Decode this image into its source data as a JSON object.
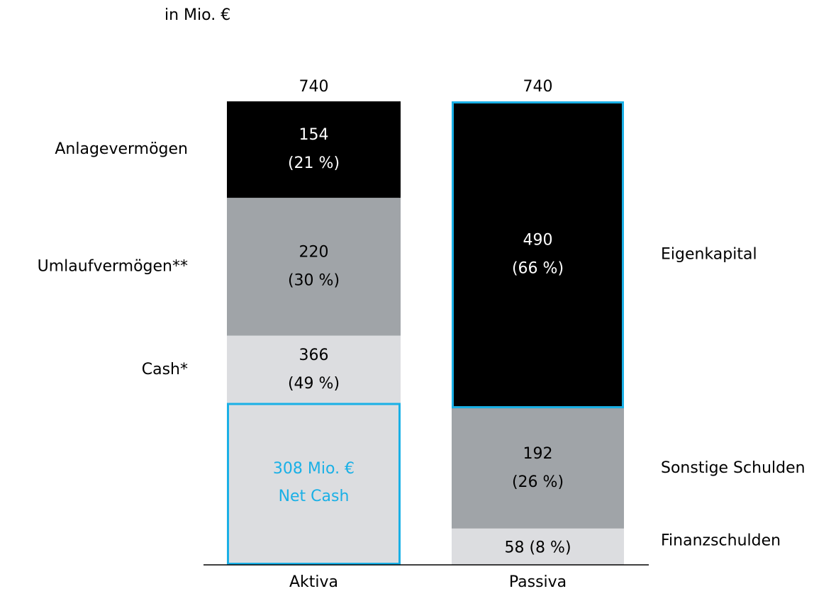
{
  "chart_data": {
    "type": "stacked_bar",
    "subtitle": "in Mio. €",
    "bars": [
      {
        "category": "Aktiva",
        "total": 740,
        "label_side": "left",
        "segments": [
          {
            "name": "Cash*",
            "value": 366,
            "share": 49,
            "share_label": "(49 %)",
            "color": "#dcdde0"
          },
          {
            "name": "Umlaufvermögen**",
            "value": 220,
            "share": 30,
            "share_label": "(30 %)",
            "color": "#a0a4a8"
          },
          {
            "name": "Anlagevermögen",
            "value": 154,
            "share": 21,
            "share_label": "(21 %)",
            "color": "#000000"
          }
        ]
      },
      {
        "category": "Passiva",
        "total": 740,
        "label_side": "right",
        "segments": [
          {
            "name": "Finanzschulden",
            "value": 58,
            "share": 8,
            "share_label": "(8 %)",
            "color": "#dcdde0",
            "inline": true
          },
          {
            "name": "Sonstige Schulden",
            "value": 192,
            "share": 26,
            "share_label": "(26 %)",
            "color": "#a0a4a8"
          },
          {
            "name": "Eigenkapital",
            "value": 490,
            "share": 66,
            "share_label": "(66 %)",
            "color": "#000000",
            "highlight": true
          }
        ]
      }
    ],
    "highlight_color": "#1ab0e6",
    "annotation": {
      "value": 308,
      "label": "308 Mio. €",
      "text": "Net Cash"
    }
  }
}
